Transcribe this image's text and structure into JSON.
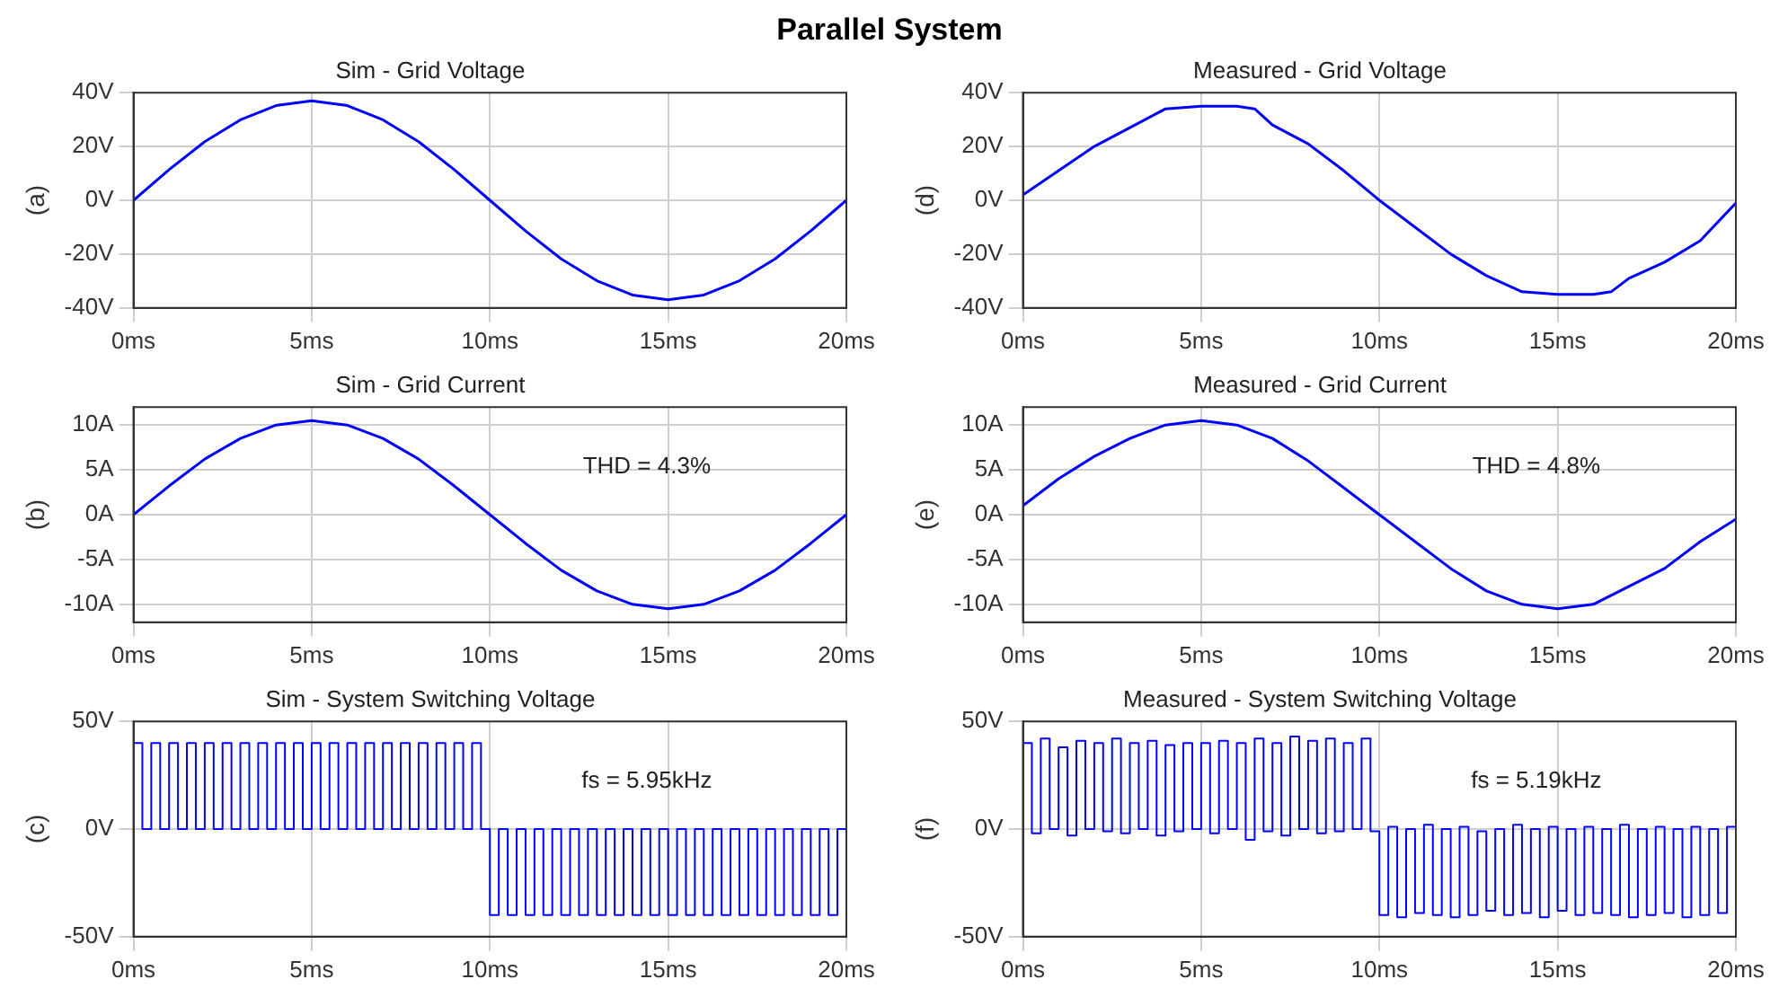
{
  "chart_data": [
    {
      "type": "other",
      "title": "Parallel System"
    },
    {
      "type": "line",
      "title": "Sim - Grid Voltage",
      "ylabel": "(a)",
      "grid": true,
      "x": [
        0,
        1,
        2,
        3,
        4,
        5,
        6,
        7,
        8,
        9,
        10,
        11,
        12,
        13,
        14,
        15,
        16,
        17,
        18,
        19,
        20
      ],
      "series": [
        {
          "color": "#0000ff",
          "values": [
            0,
            11.4,
            21.8,
            29.9,
            35.2,
            37,
            35.2,
            29.9,
            21.8,
            11.4,
            0,
            -11.4,
            -21.8,
            -29.9,
            -35.2,
            -37,
            -35.2,
            -29.9,
            -21.8,
            -11.4,
            0
          ]
        }
      ],
      "xlim": [
        0,
        20
      ],
      "xticks": [
        {
          "value": 0,
          "label": "0ms"
        },
        {
          "value": 5,
          "label": "5ms"
        },
        {
          "value": 10,
          "label": "10ms"
        },
        {
          "value": 15,
          "label": "15ms"
        },
        {
          "value": 20,
          "label": "20ms"
        }
      ],
      "ylim": [
        -40,
        40
      ],
      "yticks": [
        {
          "value": -40,
          "label": "-40V"
        },
        {
          "value": -20,
          "label": "-20V"
        },
        {
          "value": 0,
          "label": "0V"
        },
        {
          "value": 20,
          "label": "20V"
        },
        {
          "value": 40,
          "label": "40V"
        }
      ]
    },
    {
      "type": "line",
      "title": "Measured - Grid Voltage",
      "ylabel": "(d)",
      "grid": true,
      "x": [
        0,
        1,
        2,
        3,
        4,
        5,
        6,
        6.5,
        7,
        8,
        9,
        10,
        11,
        12,
        13,
        14,
        15,
        16,
        16.5,
        17,
        18,
        19,
        20
      ],
      "series": [
        {
          "color": "#0000ff",
          "values": [
            2,
            11,
            20,
            27,
            34,
            35,
            35,
            34,
            28,
            21,
            11,
            0,
            -10,
            -20,
            -28,
            -34,
            -35,
            -35,
            -34,
            -29,
            -23,
            -15,
            -1
          ]
        }
      ],
      "xlim": [
        0,
        20
      ],
      "xticks": [
        {
          "value": 0,
          "label": "0ms"
        },
        {
          "value": 5,
          "label": "5ms"
        },
        {
          "value": 10,
          "label": "10ms"
        },
        {
          "value": 15,
          "label": "15ms"
        },
        {
          "value": 20,
          "label": "20ms"
        }
      ],
      "ylim": [
        -40,
        40
      ],
      "yticks": [
        {
          "value": -40,
          "label": "-40V"
        },
        {
          "value": -20,
          "label": "-20V"
        },
        {
          "value": 0,
          "label": "0V"
        },
        {
          "value": 20,
          "label": "20V"
        },
        {
          "value": 40,
          "label": "40V"
        }
      ]
    },
    {
      "type": "line",
      "title": "Sim - Grid Current",
      "ylabel": "(b)",
      "grid": true,
      "annotations": [
        "THD = 4.3%"
      ],
      "x": [
        0,
        1,
        2,
        3,
        4,
        5,
        6,
        7,
        8,
        9,
        10,
        11,
        12,
        13,
        14,
        15,
        16,
        17,
        18,
        19,
        20
      ],
      "series": [
        {
          "color": "#0000ff",
          "values": [
            0,
            3.2,
            6.2,
            8.5,
            10,
            10.5,
            10,
            8.5,
            6.2,
            3.2,
            0,
            -3.2,
            -6.2,
            -8.5,
            -10,
            -10.5,
            -10,
            -8.5,
            -6.2,
            -3.2,
            0
          ]
        }
      ],
      "xlim": [
        0,
        20
      ],
      "xticks": [
        {
          "value": 0,
          "label": "0ms"
        },
        {
          "value": 5,
          "label": "5ms"
        },
        {
          "value": 10,
          "label": "10ms"
        },
        {
          "value": 15,
          "label": "15ms"
        },
        {
          "value": 20,
          "label": "20ms"
        }
      ],
      "ylim": [
        -12,
        12
      ],
      "yticks": [
        {
          "value": -10,
          "label": "-10A"
        },
        {
          "value": -5,
          "label": "-5A"
        },
        {
          "value": 0,
          "label": "0A"
        },
        {
          "value": 5,
          "label": "5A"
        },
        {
          "value": 10,
          "label": "10A"
        }
      ]
    },
    {
      "type": "line",
      "title": "Measured - Grid Current",
      "ylabel": "(e)",
      "grid": true,
      "annotations": [
        "THD = 4.8%"
      ],
      "x": [
        0,
        1,
        2,
        3,
        4,
        5,
        6,
        7,
        8,
        9,
        10,
        11,
        12,
        13,
        14,
        15,
        16,
        17,
        18,
        19,
        20
      ],
      "series": [
        {
          "color": "#0000ff",
          "values": [
            1,
            4,
            6.5,
            8.5,
            10,
            10.5,
            10,
            8.5,
            6,
            3,
            0,
            -3,
            -6,
            -8.5,
            -10,
            -10.5,
            -10,
            -8,
            -6,
            -3,
            -0.5
          ]
        }
      ],
      "xlim": [
        0,
        20
      ],
      "xticks": [
        {
          "value": 0,
          "label": "0ms"
        },
        {
          "value": 5,
          "label": "5ms"
        },
        {
          "value": 10,
          "label": "10ms"
        },
        {
          "value": 15,
          "label": "15ms"
        },
        {
          "value": 20,
          "label": "20ms"
        }
      ],
      "ylim": [
        -12,
        12
      ],
      "yticks": [
        {
          "value": -10,
          "label": "-10A"
        },
        {
          "value": -5,
          "label": "-5A"
        },
        {
          "value": 0,
          "label": "0A"
        },
        {
          "value": 5,
          "label": "5A"
        },
        {
          "value": 10,
          "label": "10A"
        }
      ]
    },
    {
      "type": "step",
      "title": "Sim - System Switching Voltage",
      "ylabel": "(c)",
      "grid": true,
      "annotations": [
        "fs = 5.95kHz"
      ],
      "x": [
        0,
        0.25,
        0.5,
        0.75,
        1,
        1.25,
        1.5,
        1.75,
        2,
        2.25,
        2.5,
        2.75,
        3,
        3.25,
        3.5,
        3.75,
        4,
        4.25,
        4.5,
        4.75,
        5,
        5.25,
        5.5,
        5.75,
        6,
        6.25,
        6.5,
        6.75,
        7,
        7.25,
        7.5,
        7.75,
        8,
        8.25,
        8.5,
        8.75,
        9,
        9.25,
        9.5,
        9.75,
        10,
        10.25,
        10.5,
        10.75,
        11,
        11.25,
        11.5,
        11.75,
        12,
        12.25,
        12.5,
        12.75,
        13,
        13.25,
        13.5,
        13.75,
        14,
        14.25,
        14.5,
        14.75,
        15,
        15.25,
        15.5,
        15.75,
        16,
        16.25,
        16.5,
        16.75,
        17,
        17.25,
        17.5,
        17.75,
        18,
        18.25,
        18.5,
        18.75,
        19,
        19.25,
        19.5,
        19.75,
        20
      ],
      "series": [
        {
          "color": "#0000ff",
          "values": [
            40,
            0,
            40,
            0,
            40,
            0,
            40,
            0,
            40,
            0,
            40,
            0,
            40,
            0,
            40,
            0,
            40,
            0,
            40,
            0,
            40,
            0,
            40,
            0,
            40,
            0,
            40,
            0,
            40,
            0,
            40,
            0,
            40,
            0,
            40,
            0,
            40,
            0,
            40,
            0,
            -40,
            0,
            -40,
            0,
            -40,
            0,
            -40,
            0,
            -40,
            0,
            -40,
            0,
            -40,
            0,
            -40,
            0,
            -40,
            0,
            -40,
            0,
            -40,
            0,
            -40,
            0,
            -40,
            0,
            -40,
            0,
            -40,
            0,
            -40,
            0,
            -40,
            0,
            -40,
            0,
            -40,
            0,
            -40,
            0,
            0
          ]
        }
      ],
      "xlim": [
        0,
        20
      ],
      "xticks": [
        {
          "value": 0,
          "label": "0ms"
        },
        {
          "value": 5,
          "label": "5ms"
        },
        {
          "value": 10,
          "label": "10ms"
        },
        {
          "value": 15,
          "label": "15ms"
        },
        {
          "value": 20,
          "label": "20ms"
        }
      ],
      "ylim": [
        -50,
        50
      ],
      "yticks": [
        {
          "value": -50,
          "label": "-50V"
        },
        {
          "value": 0,
          "label": "0V"
        },
        {
          "value": 50,
          "label": "50V"
        }
      ]
    },
    {
      "type": "step",
      "title": "Measured - System Switching Voltage",
      "ylabel": "(f)",
      "grid": true,
      "annotations": [
        "fs = 5.19kHz"
      ],
      "x": [
        0,
        0.25,
        0.5,
        0.75,
        1,
        1.25,
        1.5,
        1.75,
        2,
        2.25,
        2.5,
        2.75,
        3,
        3.25,
        3.5,
        3.75,
        4,
        4.25,
        4.5,
        4.75,
        5,
        5.25,
        5.5,
        5.75,
        6,
        6.25,
        6.5,
        6.75,
        7,
        7.25,
        7.5,
        7.75,
        8,
        8.25,
        8.5,
        8.75,
        9,
        9.25,
        9.5,
        9.75,
        10,
        10.25,
        10.5,
        10.75,
        11,
        11.25,
        11.5,
        11.75,
        12,
        12.25,
        12.5,
        12.75,
        13,
        13.25,
        13.5,
        13.75,
        14,
        14.25,
        14.5,
        14.75,
        15,
        15.25,
        15.5,
        15.75,
        16,
        16.25,
        16.5,
        16.75,
        17,
        17.25,
        17.5,
        17.75,
        18,
        18.25,
        18.5,
        18.75,
        19,
        19.25,
        19.5,
        19.75,
        20
      ],
      "series": [
        {
          "color": "#0000ff",
          "values": [
            40,
            -2,
            42,
            0,
            38,
            -3,
            41,
            0,
            40,
            -1,
            42,
            -2,
            40,
            0,
            41,
            -3,
            39,
            -1,
            40,
            0,
            40,
            -2,
            41,
            0,
            40,
            -5,
            42,
            -1,
            40,
            -3,
            43,
            0,
            41,
            -2,
            42,
            -1,
            40,
            0,
            42,
            -1,
            -40,
            1,
            -41,
            0,
            -39,
            2,
            -40,
            0,
            -41,
            1,
            -40,
            -1,
            -38,
            0,
            -40,
            2,
            -39,
            0,
            -41,
            1,
            -38,
            0,
            -40,
            1,
            -39,
            0,
            -40,
            2,
            -41,
            0,
            -40,
            1,
            -39,
            0,
            -41,
            1,
            -40,
            0,
            -39,
            1,
            0
          ]
        }
      ],
      "xlim": [
        0,
        20
      ],
      "xticks": [
        {
          "value": 0,
          "label": "0ms"
        },
        {
          "value": 5,
          "label": "5ms"
        },
        {
          "value": 10,
          "label": "10ms"
        },
        {
          "value": 15,
          "label": "15ms"
        },
        {
          "value": 20,
          "label": "20ms"
        }
      ],
      "ylim": [
        -50,
        50
      ],
      "yticks": [
        {
          "value": -50,
          "label": "-50V"
        },
        {
          "value": 0,
          "label": "0V"
        },
        {
          "value": 50,
          "label": "50V"
        }
      ]
    }
  ]
}
